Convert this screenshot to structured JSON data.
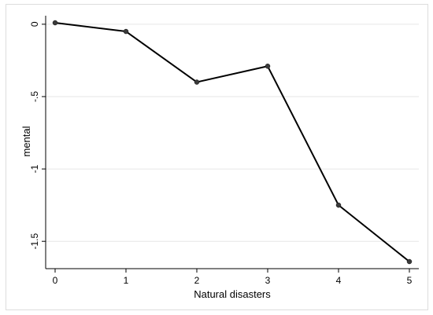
{
  "chart_data": {
    "type": "line",
    "xlabel": "Natural disasters",
    "ylabel": "mental",
    "x": [
      0,
      1,
      2,
      3,
      4,
      5
    ],
    "series": [
      {
        "values": [
          0.01,
          -0.05,
          -0.4,
          -0.29,
          -1.25,
          -1.64
        ]
      }
    ],
    "xticks": [
      "0",
      "1",
      "2",
      "3",
      "4",
      "5"
    ],
    "yticks": [
      {
        "value": 0,
        "label": "0"
      },
      {
        "value": -0.5,
        "label": "-.5"
      },
      {
        "value": -1,
        "label": "-1"
      },
      {
        "value": -1.5,
        "label": "-1.5"
      }
    ],
    "xlim": [
      0,
      5
    ],
    "ylim": [
      -1.64,
      0.01
    ],
    "grid": "horizontal",
    "colors": {
      "line": "#000000",
      "marker": "#3a3a3a",
      "grid": "#e6e6e6",
      "frame": "#dddddd"
    }
  }
}
